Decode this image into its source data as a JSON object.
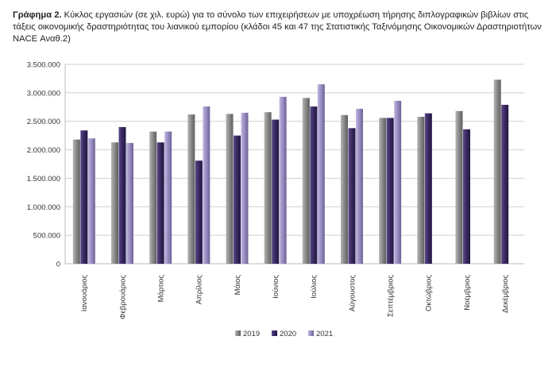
{
  "caption": {
    "lead": "Γράφημα 2.",
    "text": " Κύκλος εργασιών (σε χιλ. ευρώ) για το σύνολο των επιχειρήσεων με υποχρέωση τήρησης διπλογραφικών βιβλίων στις τάξεις οικονομικής δραστηριότητας του λιανικού εμπορίου (κλάδοι 45 και 47 της Στατιστικής Ταξινόμησης Οικονομικών Δραστηριοτήτων NACE Αναθ.2)"
  },
  "chart_data": {
    "type": "bar",
    "categories": [
      "Ιανουάριος",
      "Φεβρουάριος",
      "Μάρτιος",
      "Απρίλιος",
      "Μάιος",
      "Ιούνιος",
      "Ιούλιος",
      "Αύγουστος",
      "Σεπτέμβριος",
      "Οκτώβριος",
      "Νοέμβριος",
      "Δεκέμβριος"
    ],
    "series": [
      {
        "name": "2019",
        "color": "#8c8c8c",
        "values": [
          2180000,
          2130000,
          2320000,
          2620000,
          2630000,
          2660000,
          2910000,
          2610000,
          2560000,
          2580000,
          2680000,
          3230000
        ]
      },
      {
        "name": "2020",
        "color": "#3b2a63",
        "values": [
          2340000,
          2400000,
          2130000,
          1810000,
          2250000,
          2530000,
          2760000,
          2380000,
          2560000,
          2640000,
          2360000,
          2790000
        ]
      },
      {
        "name": "2021",
        "color": "#9b8fc4",
        "values": [
          2200000,
          2120000,
          2320000,
          2760000,
          2650000,
          2930000,
          3150000,
          2720000,
          2860000,
          null,
          null,
          null
        ]
      }
    ],
    "yticks": [
      "0",
      "500.000",
      "1.000.000",
      "1.500.000",
      "2.000.000",
      "2.500.000",
      "3.000.000",
      "3.500.000"
    ],
    "ylim": [
      0,
      3500000
    ],
    "grid": true,
    "legend_position": "bottom-center"
  }
}
